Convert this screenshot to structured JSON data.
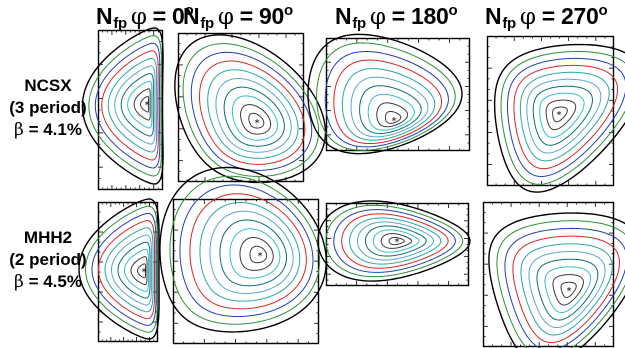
{
  "columns": [
    {
      "prefix": "N",
      "sub": "fp",
      "symbol": "φ",
      "value": "= 0",
      "degree": "o"
    },
    {
      "prefix": "N",
      "sub": "fp",
      "symbol": "φ",
      "value": "= 90",
      "degree": "o"
    },
    {
      "prefix": "N",
      "sub": "fp",
      "symbol": "φ",
      "value": "= 180",
      "degree": "o"
    },
    {
      "prefix": "N",
      "sub": "fp",
      "symbol": "φ",
      "value": "= 270",
      "degree": "o"
    }
  ],
  "rows": [
    {
      "name": "NCSX",
      "period": "(3 period)",
      "beta_symbol": "β",
      "beta_value": "= 4.1%"
    },
    {
      "name": "MHH2",
      "period": "(2 period)",
      "beta_symbol": "β",
      "beta_value": "= 4.5%"
    }
  ],
  "colors": {
    "frame": "#000000",
    "surfaces": [
      "#3b3b3b",
      "#2b8f3a",
      "#1f3fb8",
      "#d62828",
      "#2aa7a0",
      "#5aa5d6",
      "#0a6e78",
      "#33c0c8",
      "#3b3b3b"
    ],
    "axis_marker": "*"
  }
}
